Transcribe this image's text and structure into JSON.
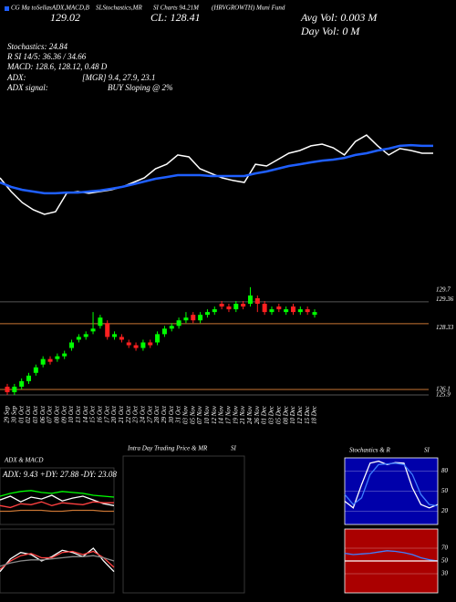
{
  "header": {
    "source": "CG Ma toSellasADX,MACD,B",
    "source2": "SLStochastics,MR",
    "source3": "SI Charts 94.21M",
    "source4": "(HRVGROWTH) Muni Fund",
    "last": "129.02",
    "close": "CL: 128.41",
    "avg_vol": "Avg Vol: 0.003 M",
    "day_vol": "Day Vol: 0  M",
    "stochastics": "Stochastics: 24.84",
    "rsi": "R SI 14/5: 36.36 / 34.66",
    "macd": "MACD: 128.6, 128.12, 0.48 D",
    "adx_label": "ADX:",
    "adx_values": "[MGR] 9.4, 27.9, 23.1",
    "adx_signal_label": "ADX  signal:",
    "adx_signal": "BUY Sloping @ 2%"
  },
  "chart_data": [
    {
      "type": "line",
      "ylim": [
        125,
        131
      ],
      "series": [
        {
          "color": "#ffffff",
          "values": [
            127.86,
            127.0,
            126.31,
            125.86,
            125.57,
            125.74,
            126.89,
            127.0,
            126.89,
            127.0,
            127.11,
            127.29,
            127.57,
            127.86,
            128.43,
            128.71,
            129.29,
            129.17,
            128.43,
            128.14,
            127.86,
            127.69,
            127.57,
            128.71,
            128.6,
            129.0,
            129.4,
            129.57,
            129.86,
            129.97,
            129.74,
            129.29,
            130.14,
            130.54,
            129.86,
            129.29,
            129.69,
            129.57,
            129.4,
            129.4
          ]
        },
        {
          "color": "#1f5fff",
          "values": [
            127.57,
            127.29,
            127.11,
            127.0,
            126.89,
            126.89,
            126.94,
            126.94,
            127.0,
            127.06,
            127.17,
            127.29,
            127.46,
            127.63,
            127.8,
            127.91,
            128.03,
            128.03,
            128.03,
            127.97,
            127.97,
            127.97,
            127.97,
            128.14,
            128.26,
            128.43,
            128.6,
            128.71,
            128.83,
            128.94,
            129.0,
            129.11,
            129.29,
            129.4,
            129.57,
            129.69,
            129.86,
            129.91,
            129.86,
            129.86
          ]
        }
      ]
    },
    {
      "type": "candlestick",
      "ylim": [
        125.67,
        130.29
      ],
      "up_color": "#00ff00",
      "down_color": "#ff2020",
      "yticks": [
        129.7,
        129.36,
        128.33,
        126.1,
        125.9
      ],
      "levels": [
        {
          "value": 129.27,
          "color": "#555555"
        },
        {
          "value": 128.48,
          "color": "#c87533"
        },
        {
          "value": 126.1,
          "color": "#c87533"
        },
        {
          "value": 125.9,
          "color": "#555555"
        }
      ],
      "categories": [
        "29 Sep",
        "30 Sep",
        "01 Oct",
        "02 Oct",
        "03 Oct",
        "06 Oct",
        "07 Oct",
        "08 Oct",
        "09 Oct",
        "10 Oct",
        "13 Oct",
        "14 Oct",
        "15 Oct",
        "16 Oct",
        "17 Oct",
        "20 Oct",
        "21 Oct",
        "22 Oct",
        "23 Oct",
        "24 Oct",
        "27 Oct",
        "28 Oct",
        "29 Oct",
        "30 Oct",
        "31 Oct",
        "03 Nov",
        "05 Nov",
        "07 Nov",
        "10 Nov",
        "12 Nov",
        "14 Nov",
        "17 Nov",
        "19 Nov",
        "21 Nov",
        "24 Nov",
        "26 Nov",
        "01 Dec",
        "03 Dec",
        "05 Dec",
        "08 Dec",
        "10 Dec",
        "12 Dec",
        "15 Dec",
        "18 Dec"
      ],
      "open": [
        126.2,
        126.0,
        126.2,
        126.4,
        126.7,
        127.0,
        127.2,
        127.2,
        127.3,
        127.6,
        127.9,
        128.0,
        128.2,
        128.4,
        128.5,
        128.0,
        128.0,
        127.8,
        127.7,
        127.6,
        127.8,
        127.8,
        128.1,
        128.3,
        128.4,
        128.6,
        128.8,
        128.6,
        128.8,
        128.9,
        129.2,
        129.1,
        129.0,
        129.2,
        129.2,
        129.4,
        129.2,
        128.9,
        129.1,
        128.9,
        129.1,
        128.9,
        129.0,
        128.8
      ],
      "high": [
        126.3,
        126.3,
        126.5,
        126.7,
        127.0,
        127.3,
        127.3,
        127.4,
        127.5,
        127.9,
        128.1,
        128.2,
        128.9,
        128.8,
        128.6,
        128.2,
        128.1,
        127.9,
        127.8,
        127.9,
        127.9,
        128.2,
        128.4,
        128.5,
        128.7,
        128.9,
        128.9,
        128.9,
        129.0,
        129.1,
        129.3,
        129.2,
        129.3,
        129.3,
        129.8,
        129.5,
        129.3,
        129.1,
        129.2,
        129.1,
        129.2,
        129.1,
        129.1,
        129.0
      ],
      "low": [
        125.9,
        125.9,
        126.1,
        126.3,
        126.6,
        126.9,
        127.0,
        127.1,
        127.2,
        127.5,
        127.8,
        127.9,
        128.1,
        128.3,
        127.9,
        127.9,
        127.8,
        127.6,
        127.5,
        127.5,
        127.6,
        127.7,
        128.0,
        128.2,
        128.3,
        128.5,
        128.5,
        128.5,
        128.7,
        128.8,
        129.0,
        128.9,
        128.9,
        129.0,
        129.1,
        128.9,
        128.8,
        128.8,
        128.9,
        128.8,
        128.8,
        128.8,
        128.8,
        128.7
      ],
      "close": [
        126.0,
        126.2,
        126.4,
        126.6,
        126.9,
        127.2,
        127.1,
        127.3,
        127.4,
        127.8,
        128.0,
        128.1,
        128.3,
        128.7,
        128.0,
        128.1,
        127.9,
        127.7,
        127.6,
        127.8,
        127.7,
        128.1,
        128.3,
        128.4,
        128.6,
        128.7,
        128.6,
        128.8,
        128.9,
        129.0,
        129.1,
        129.0,
        129.2,
        129.1,
        129.5,
        129.2,
        128.9,
        129.0,
        129.0,
        129.0,
        128.9,
        129.0,
        128.9,
        128.9
      ]
    },
    {
      "type": "line",
      "title": "ADX  & MACD",
      "annotation": "ADX: 9.43  +DY: 27.88  -DY: 23.08",
      "ylim": [
        0,
        60
      ],
      "series": [
        {
          "color": "#00ff00",
          "values": [
            30,
            33,
            35,
            36,
            34,
            33,
            35,
            34,
            33,
            31,
            30,
            29
          ]
        },
        {
          "color": "#ffffff",
          "values": [
            26,
            30,
            24,
            29,
            27,
            31,
            25,
            28,
            30,
            26,
            22,
            20
          ]
        },
        {
          "color": "#ff4040",
          "values": [
            20,
            18,
            22,
            21,
            24,
            20,
            23,
            22,
            21,
            24,
            23,
            23
          ]
        },
        {
          "color": "#c87533",
          "values": [
            14,
            14,
            15,
            15,
            15,
            14,
            14,
            15,
            15,
            15,
            14,
            14
          ]
        }
      ]
    },
    {
      "type": "line",
      "ylim": [
        0,
        60
      ],
      "series": [
        {
          "color": "#ffffff",
          "values": [
            20,
            32,
            38,
            36,
            30,
            34,
            40,
            38,
            34,
            42,
            30,
            20
          ]
        },
        {
          "color": "#ff4040",
          "values": [
            22,
            30,
            35,
            37,
            33,
            33,
            38,
            39,
            36,
            39,
            33,
            24
          ]
        },
        {
          "color": "#888888",
          "values": [
            25,
            28,
            30,
            31,
            31,
            32,
            33,
            34,
            34,
            35,
            33,
            30
          ]
        }
      ]
    },
    {
      "type": "line",
      "title": "Intra Day Trading Price  & MR",
      "title2": "SI",
      "series": []
    },
    {
      "type": "line",
      "title": "Stochastics & R",
      "title2": "SI",
      "ylim": [
        0,
        100
      ],
      "yticks": [
        20,
        50,
        80
      ],
      "background": "#0000aa",
      "series": [
        {
          "color": "#ffffff",
          "values": [
            35,
            25,
            60,
            92,
            95,
            90,
            93,
            92,
            55,
            30,
            25,
            30
          ]
        },
        {
          "color": "#3f7fff",
          "values": [
            45,
            30,
            40,
            75,
            90,
            91,
            92,
            90,
            75,
            45,
            30,
            28
          ]
        }
      ]
    },
    {
      "type": "line",
      "ylim": [
        0,
        100
      ],
      "yticks": [
        30,
        50,
        70
      ],
      "background": "#aa0000",
      "series": [
        {
          "color": "#3f7fff",
          "values": [
            62,
            60,
            61,
            62,
            64,
            66,
            65,
            63,
            60,
            55,
            52,
            50
          ]
        },
        {
          "color": "#ffffff",
          "values": [
            50,
            50,
            50,
            50,
            50,
            50,
            50,
            50,
            50,
            50,
            50,
            50
          ]
        }
      ]
    }
  ]
}
